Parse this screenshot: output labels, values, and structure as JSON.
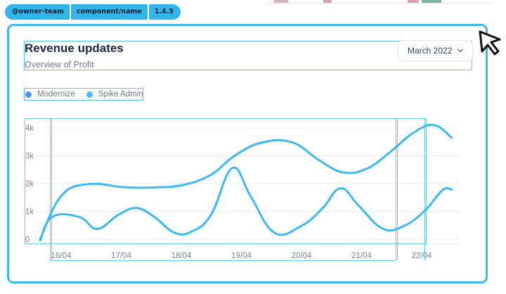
{
  "tags": [
    "@owner-team",
    "component/name",
    "1.4.5"
  ],
  "card": {
    "title": "Revenue updates",
    "subtitle": "Overview of Profit",
    "month_select": {
      "value": "March 2022"
    }
  },
  "colors": {
    "accent": "#3cb8ec",
    "series_one": "#5a8dee",
    "series_two": "#49beff",
    "text": "#2a3547",
    "muted": "#6b7a8f"
  },
  "icons": {
    "select": "chevron-down-icon",
    "cursor": "mouse-pointer-icon"
  },
  "chart_data": {
    "type": "line",
    "categories": [
      "16/04",
      "17/04",
      "18/04",
      "19/04",
      "20/04",
      "21/04",
      "22/04"
    ],
    "y_ticks": [
      "0",
      "1k",
      "2k",
      "3k",
      "4k"
    ],
    "ylim": [
      0,
      4000
    ],
    "grid": true,
    "legend_position": "top-left",
    "series": [
      {
        "name": "Modernize",
        "color": "#5a8dee",
        "x": [
          15.65,
          16.0,
          16.45,
          17.05,
          17.55,
          18.05,
          18.5,
          18.9,
          19.35,
          19.85,
          20.3,
          20.7,
          21.1,
          21.5,
          21.85,
          22.2,
          22.5
        ],
        "values": [
          0,
          1550,
          1980,
          1870,
          1860,
          1960,
          2330,
          3020,
          3480,
          3480,
          2830,
          2400,
          2550,
          3180,
          3810,
          4110,
          3650
        ]
      },
      {
        "name": "Spike Admin",
        "color": "#49beff",
        "x": [
          15.65,
          15.85,
          16.3,
          16.6,
          16.95,
          17.25,
          17.55,
          17.9,
          18.2,
          18.5,
          18.85,
          19.15,
          19.55,
          20.0,
          20.35,
          20.65,
          20.95,
          21.35,
          21.7,
          22.05,
          22.35,
          22.5
        ],
        "values": [
          -50,
          800,
          800,
          370,
          870,
          1120,
          800,
          220,
          300,
          900,
          2560,
          1560,
          230,
          480,
          1110,
          1830,
          1210,
          380,
          470,
          1020,
          1770,
          1780
        ]
      }
    ]
  }
}
